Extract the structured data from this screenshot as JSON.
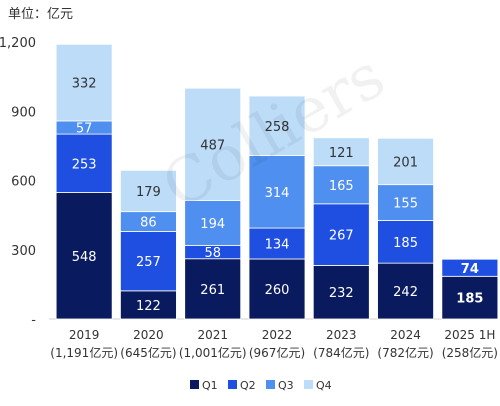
{
  "unit_label": "单位：亿元",
  "watermark": "Colliers",
  "chart_data": {
    "type": "bar",
    "stacked": true,
    "title": "",
    "xlabel": "",
    "ylabel": "",
    "ylim": [
      0,
      1200
    ],
    "yticks": [
      {
        "value": 0,
        "label": "-"
      },
      {
        "value": 300,
        "label": "300"
      },
      {
        "value": 600,
        "label": "600"
      },
      {
        "value": 900,
        "label": "900"
      },
      {
        "value": 1200,
        "label": "1,200"
      }
    ],
    "categories": [
      "2019",
      "2020",
      "2021",
      "2022",
      "2023",
      "2024",
      "2025 1H"
    ],
    "category_sublabels": [
      "(1,191亿元)",
      "(645亿元)",
      "(1,001亿元)",
      "(967亿元)",
      "(784亿元)",
      "(782亿元)",
      "(258亿元)"
    ],
    "series": [
      {
        "name": "Q1",
        "color": "#0a1a5e",
        "values": [
          548,
          122,
          261,
          260,
          232,
          242,
          185
        ]
      },
      {
        "name": "Q2",
        "color": "#1f4fe0",
        "values": [
          253,
          257,
          58,
          134,
          267,
          185,
          74
        ]
      },
      {
        "name": "Q3",
        "color": "#4f8fef",
        "values": [
          57,
          86,
          194,
          314,
          165,
          155,
          null
        ]
      },
      {
        "name": "Q4",
        "color": "#bcdcf8",
        "values": [
          332,
          179,
          487,
          258,
          121,
          201,
          null
        ]
      }
    ],
    "label_colors": [
      "#ffffff",
      "#ffffff",
      "#ffffff",
      "#333333"
    ],
    "grid": false,
    "legend_position": "bottom"
  }
}
